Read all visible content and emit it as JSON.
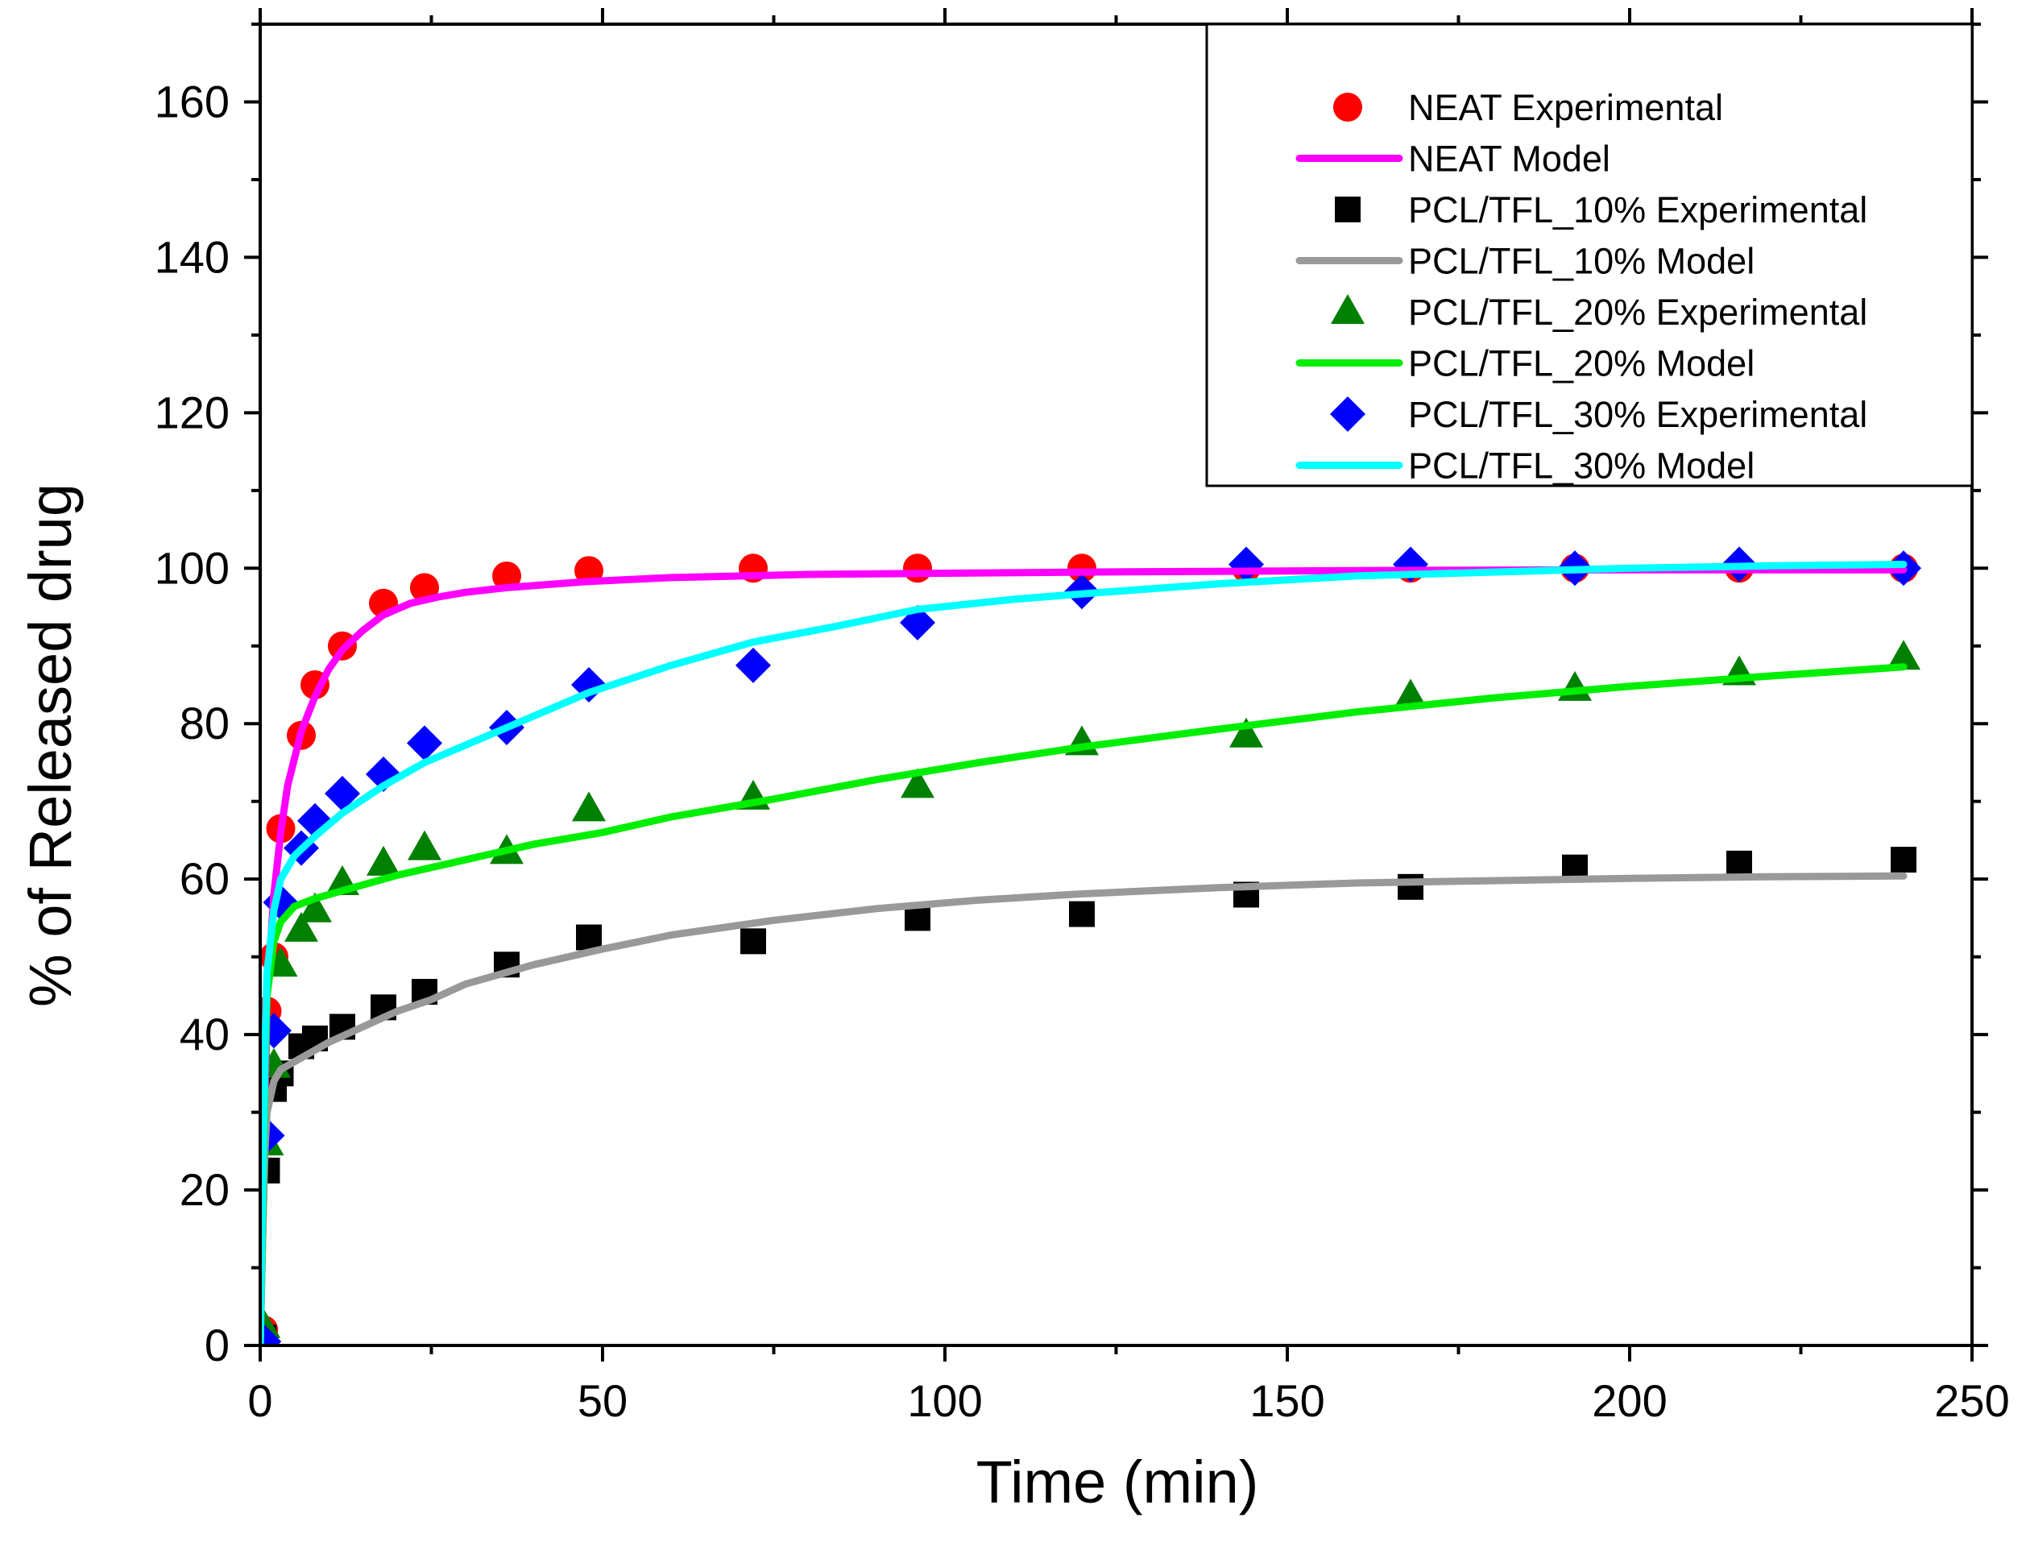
{
  "chart_data": {
    "type": "scatter",
    "title": "",
    "xlabel": "Time (min)",
    "ylabel": "% of Released drug",
    "xlim": [
      0,
      250
    ],
    "ylim": [
      0,
      170
    ],
    "x_ticks": [
      0,
      50,
      100,
      150,
      200,
      250
    ],
    "y_ticks": [
      0,
      20,
      40,
      60,
      80,
      100,
      120,
      140,
      160
    ],
    "grid": false,
    "legend_position": "top-right",
    "experimental": [
      {
        "name": "NEAT Experimental",
        "color": "#ff0000",
        "marker": "circle",
        "points": [
          [
            0.5,
            2
          ],
          [
            1,
            43
          ],
          [
            2,
            50
          ],
          [
            3,
            66.5
          ],
          [
            6,
            78.5
          ],
          [
            8,
            85
          ],
          [
            12,
            90
          ],
          [
            18,
            95.5
          ],
          [
            24,
            97.5
          ],
          [
            36,
            99
          ],
          [
            48,
            99.7
          ],
          [
            72,
            100
          ],
          [
            96,
            100
          ],
          [
            120,
            100
          ],
          [
            144,
            100
          ],
          [
            168,
            100
          ],
          [
            192,
            100
          ],
          [
            216,
            100
          ],
          [
            240,
            100
          ]
        ]
      },
      {
        "name": "PCL/TFL_10% Experimental",
        "color": "#000000",
        "marker": "square",
        "points": [
          [
            0.5,
            1
          ],
          [
            1,
            22.5
          ],
          [
            2,
            33
          ],
          [
            3,
            35
          ],
          [
            6,
            38.5
          ],
          [
            8,
            39.5
          ],
          [
            12,
            41
          ],
          [
            18,
            43.5
          ],
          [
            24,
            45.5
          ],
          [
            36,
            49
          ],
          [
            48,
            52.5
          ],
          [
            72,
            52
          ],
          [
            96,
            55
          ],
          [
            120,
            55.5
          ],
          [
            144,
            58
          ],
          [
            168,
            59
          ],
          [
            192,
            61.5
          ],
          [
            216,
            62
          ],
          [
            240,
            62.5
          ]
        ]
      },
      {
        "name": "PCL/TFL_20% Experimental",
        "color": "#008000",
        "marker": "triangle",
        "points": [
          [
            0.5,
            2.5
          ],
          [
            1,
            26
          ],
          [
            2,
            36
          ],
          [
            3,
            49
          ],
          [
            6,
            53.5
          ],
          [
            8,
            56
          ],
          [
            12,
            59.5
          ],
          [
            18,
            62
          ],
          [
            24,
            64
          ],
          [
            36,
            63.5
          ],
          [
            48,
            69
          ],
          [
            72,
            70.5
          ],
          [
            96,
            72
          ],
          [
            120,
            77.5
          ],
          [
            144,
            78.5
          ],
          [
            168,
            83.5
          ],
          [
            192,
            84.5
          ],
          [
            216,
            86.5
          ],
          [
            240,
            88.5
          ]
        ]
      },
      {
        "name": "PCL/TFL_30% Experimental",
        "color": "#0000ff",
        "marker": "diamond",
        "points": [
          [
            0.5,
            0.5
          ],
          [
            1,
            27
          ],
          [
            2,
            40.5
          ],
          [
            3,
            57
          ],
          [
            6,
            64
          ],
          [
            8,
            67.5
          ],
          [
            12,
            71
          ],
          [
            18,
            73.5
          ],
          [
            24,
            77.5
          ],
          [
            36,
            79.5
          ],
          [
            48,
            85
          ],
          [
            72,
            87.5
          ],
          [
            96,
            93
          ],
          [
            120,
            97
          ],
          [
            144,
            100.5
          ],
          [
            168,
            100.5
          ],
          [
            192,
            100
          ],
          [
            216,
            100.5
          ],
          [
            240,
            100
          ]
        ]
      }
    ],
    "model": [
      {
        "name": "NEAT Model",
        "color": "#ff00ff",
        "points": [
          [
            0,
            0
          ],
          [
            0.5,
            20
          ],
          [
            1,
            45
          ],
          [
            2,
            58
          ],
          [
            3,
            66
          ],
          [
            4,
            72
          ],
          [
            6,
            79
          ],
          [
            8,
            83.5
          ],
          [
            10,
            87
          ],
          [
            12,
            89.5
          ],
          [
            15,
            92
          ],
          [
            18,
            94
          ],
          [
            22,
            95.5
          ],
          [
            26,
            96.3
          ],
          [
            30,
            96.9
          ],
          [
            36,
            97.5
          ],
          [
            48,
            98.3
          ],
          [
            60,
            98.8
          ],
          [
            80,
            99.2
          ],
          [
            120,
            99.5
          ],
          [
            160,
            99.7
          ],
          [
            200,
            99.8
          ],
          [
            240,
            99.8
          ]
        ]
      },
      {
        "name": "PCL/TFL_10% Model",
        "color": "#999999",
        "points": [
          [
            0,
            0
          ],
          [
            0.3,
            12
          ],
          [
            0.7,
            25
          ],
          [
            1,
            30
          ],
          [
            2,
            34
          ],
          [
            3,
            35.5
          ],
          [
            6,
            37
          ],
          [
            10,
            39
          ],
          [
            15,
            41
          ],
          [
            20,
            43
          ],
          [
            25,
            44.5
          ],
          [
            30,
            46.5
          ],
          [
            40,
            49
          ],
          [
            50,
            51
          ],
          [
            60,
            52.8
          ],
          [
            75,
            54.7
          ],
          [
            90,
            56.2
          ],
          [
            105,
            57.3
          ],
          [
            120,
            58.1
          ],
          [
            140,
            58.9
          ],
          [
            160,
            59.5
          ],
          [
            180,
            59.8
          ],
          [
            200,
            60.1
          ],
          [
            220,
            60.3
          ],
          [
            240,
            60.4
          ]
        ]
      },
      {
        "name": "PCL/TFL_20% Model",
        "color": "#00ee00",
        "points": [
          [
            0,
            0
          ],
          [
            0.3,
            15
          ],
          [
            0.7,
            35
          ],
          [
            1,
            45
          ],
          [
            2,
            52
          ],
          [
            3,
            54.5
          ],
          [
            5,
            56.5
          ],
          [
            8,
            57.5
          ],
          [
            12,
            58.5
          ],
          [
            20,
            60.5
          ],
          [
            30,
            62.5
          ],
          [
            40,
            64.5
          ],
          [
            50,
            66
          ],
          [
            60,
            68
          ],
          [
            75,
            70.3
          ],
          [
            90,
            72.8
          ],
          [
            105,
            75
          ],
          [
            120,
            77
          ],
          [
            140,
            79.3
          ],
          [
            160,
            81.5
          ],
          [
            180,
            83.3
          ],
          [
            200,
            84.8
          ],
          [
            220,
            86.1
          ],
          [
            240,
            87.3
          ]
        ]
      },
      {
        "name": "PCL/TFL_30% Model",
        "color": "#00ffff",
        "points": [
          [
            0,
            0
          ],
          [
            0.3,
            18
          ],
          [
            0.7,
            38
          ],
          [
            1,
            48
          ],
          [
            2,
            56
          ],
          [
            3,
            60
          ],
          [
            5,
            63
          ],
          [
            8,
            65.5
          ],
          [
            12,
            68.5
          ],
          [
            18,
            72
          ],
          [
            24,
            75
          ],
          [
            36,
            79.5
          ],
          [
            48,
            84
          ],
          [
            60,
            87.5
          ],
          [
            72,
            90.5
          ],
          [
            84,
            92.5
          ],
          [
            96,
            94.7
          ],
          [
            110,
            96
          ],
          [
            120,
            96.7
          ],
          [
            140,
            98
          ],
          [
            160,
            99
          ],
          [
            180,
            99.5
          ],
          [
            200,
            100
          ],
          [
            220,
            100.3
          ],
          [
            240,
            100.5
          ]
        ]
      }
    ],
    "legend": [
      {
        "label": "NEAT Experimental",
        "marker": "circle",
        "color": "#ff0000"
      },
      {
        "label": "NEAT Model",
        "marker": "line",
        "color": "#ff00ff"
      },
      {
        "label": "PCL/TFL_10% Experimental",
        "marker": "square",
        "color": "#000000"
      },
      {
        "label": "PCL/TFL_10% Model",
        "marker": "line",
        "color": "#999999"
      },
      {
        "label": "PCL/TFL_20% Experimental",
        "marker": "triangle",
        "color": "#008000"
      },
      {
        "label": "PCL/TFL_20% Model",
        "marker": "line",
        "color": "#00ee00"
      },
      {
        "label": "PCL/TFL_30% Experimental",
        "marker": "diamond",
        "color": "#0000ff"
      },
      {
        "label": "PCL/TFL_30% Model",
        "marker": "line",
        "color": "#00ffff"
      }
    ]
  }
}
